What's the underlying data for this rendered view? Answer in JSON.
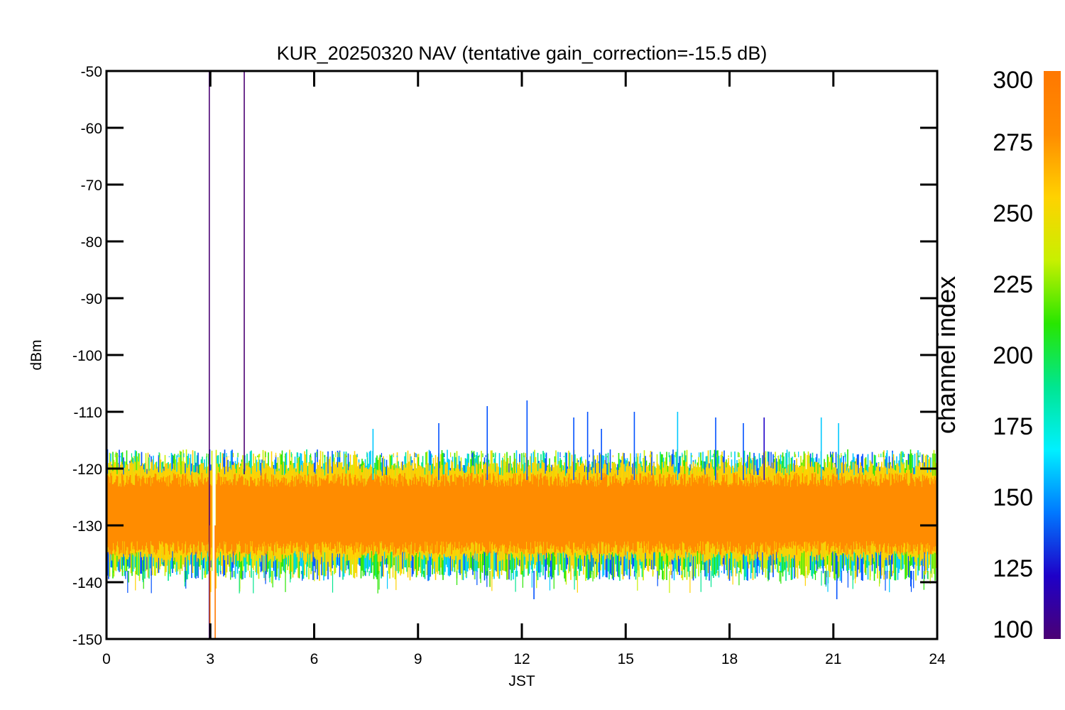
{
  "chart_data": {
    "type": "line",
    "title": "KUR_20250320 NAV (tentative gain_correction=-15.5 dB)",
    "xlabel": "JST",
    "ylabel": "dBm",
    "xlim": [
      0,
      24
    ],
    "ylim": [
      -150,
      -50
    ],
    "x_ticks": [
      0,
      3,
      6,
      9,
      12,
      15,
      18,
      21,
      24
    ],
    "y_ticks": [
      -50,
      -60,
      -70,
      -80,
      -90,
      -100,
      -110,
      -120,
      -130,
      -140,
      -150
    ],
    "grid": false,
    "legend": "none",
    "colorbar": {
      "label": "channel index",
      "range": [
        100,
        300
      ],
      "ticks": [
        300,
        275,
        250,
        225,
        200,
        175,
        150,
        125,
        100
      ],
      "colormap": [
        "#4b0074",
        "#1e00c8",
        "#0078ff",
        "#00f0ff",
        "#00e690",
        "#28e600",
        "#c8f000",
        "#ffd200",
        "#ff8c00",
        "#ff7800"
      ]
    },
    "noise_band": {
      "x_range": [
        0,
        24
      ],
      "core_color": "#ff8c00",
      "core_range": [
        -134,
        -122
      ],
      "outer_range": [
        -138,
        -118
      ],
      "extreme_range": [
        -142,
        -117
      ],
      "gap_x": 3.1
    },
    "spikes": [
      {
        "x": 2.97,
        "y_top": -50,
        "y_bottom": -150,
        "color": "#4b0074"
      },
      {
        "x": 3.98,
        "y_top": -50,
        "y_bottom": -121,
        "color": "#4b0074"
      },
      {
        "x": 2.99,
        "y_top": -130,
        "y_bottom": -150,
        "color": "#ff7800"
      },
      {
        "x": 3.14,
        "y_top": -130,
        "y_bottom": -150,
        "color": "#ff7800"
      },
      {
        "x": 9.6,
        "y_top": -112,
        "y_bottom": -122,
        "color": "#0050ff"
      },
      {
        "x": 11.0,
        "y_top": -109,
        "y_bottom": -122,
        "color": "#0050ff"
      },
      {
        "x": 12.15,
        "y_top": -108,
        "y_bottom": -122,
        "color": "#0050ff"
      },
      {
        "x": 13.5,
        "y_top": -111,
        "y_bottom": -122,
        "color": "#0050ff"
      },
      {
        "x": 15.25,
        "y_top": -110,
        "y_bottom": -122,
        "color": "#0050ff"
      },
      {
        "x": 16.5,
        "y_top": -110,
        "y_bottom": -122,
        "color": "#00c8ff"
      },
      {
        "x": 17.6,
        "y_top": -111,
        "y_bottom": -122,
        "color": "#0050ff"
      },
      {
        "x": 18.4,
        "y_top": -112,
        "y_bottom": -122,
        "color": "#0050ff"
      },
      {
        "x": 20.65,
        "y_top": -111,
        "y_bottom": -122,
        "color": "#00c8ff"
      },
      {
        "x": 19.0,
        "y_top": -111,
        "y_bottom": -122,
        "color": "#1e00c8"
      },
      {
        "x": 21.15,
        "y_top": -112,
        "y_bottom": -122,
        "color": "#00c8ff"
      },
      {
        "x": 7.7,
        "y_top": -113,
        "y_bottom": -122,
        "color": "#00c8ff"
      },
      {
        "x": 13.9,
        "y_top": -110,
        "y_bottom": -122,
        "color": "#0050ff"
      },
      {
        "x": 14.3,
        "y_top": -113,
        "y_bottom": -122,
        "color": "#0050ff"
      },
      {
        "x": 21.1,
        "y_top": -143,
        "y_bottom": -138,
        "color": "#0050ff"
      },
      {
        "x": 12.35,
        "y_top": -143,
        "y_bottom": -138,
        "color": "#0050ff"
      }
    ]
  }
}
